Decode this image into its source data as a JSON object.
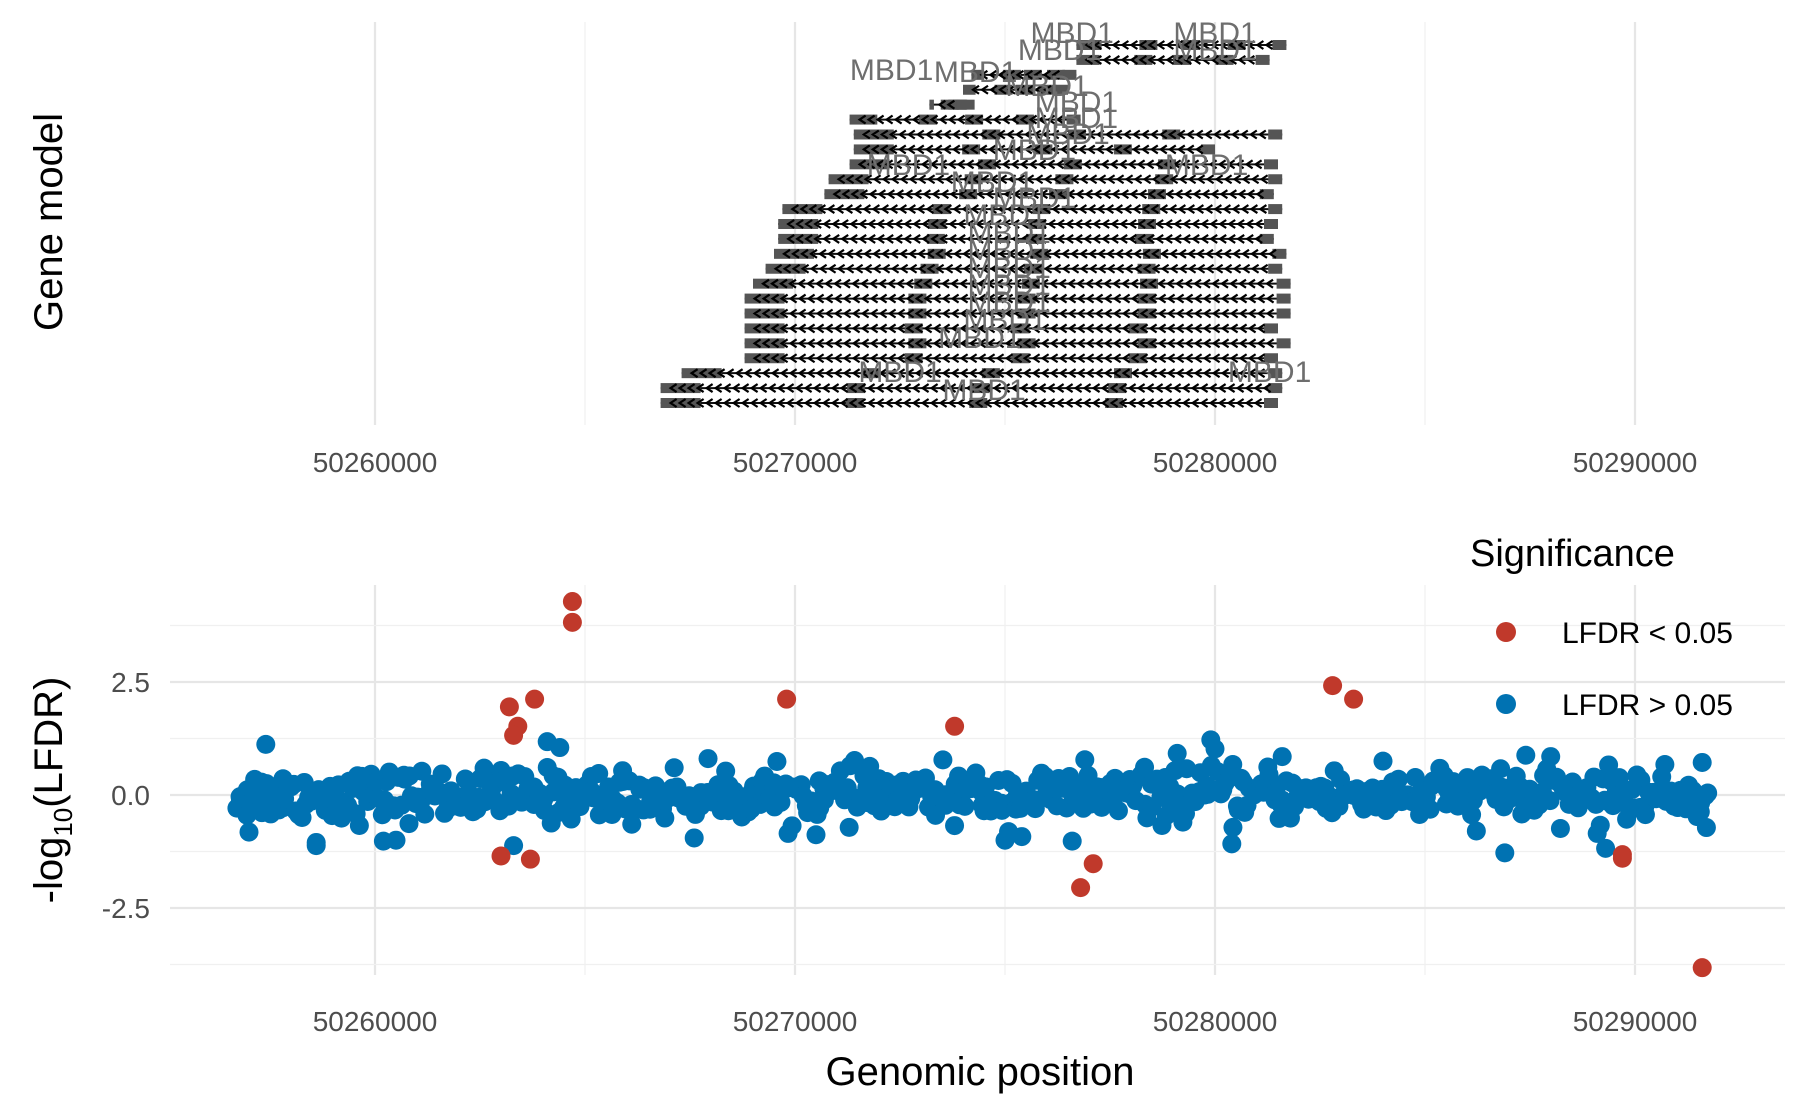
{
  "chart_data": [
    {
      "type": "gene_model",
      "ylabel": "Gene model",
      "xlim": [
        50255500,
        50293500
      ],
      "x_ticks": [
        50260000,
        50270000,
        50280000,
        50290000
      ],
      "x_tick_labels": [
        "50260000",
        "50270000",
        "50280000",
        "50290000"
      ],
      "grid": true,
      "strand": "-",
      "gene_name": "MBD1",
      "transcripts": [
        {
          "start": 50276700,
          "end": 50281700,
          "label": "MBD1"
        },
        {
          "start": 50276700,
          "end": 50281300,
          "label": "MBD1"
        },
        {
          "start": 50274200,
          "end": 50276700,
          "label": "MBD1"
        },
        {
          "start": 50274000,
          "end": 50276500,
          "label": "MBD1"
        },
        {
          "start": 50273200,
          "end": 50274100,
          "label": "MBD1"
        },
        {
          "start": 50271300,
          "end": 50276800,
          "label": "MBD1"
        },
        {
          "start": 50271400,
          "end": 50281600,
          "label": "MBD1"
        },
        {
          "start": 50271400,
          "end": 50280000,
          "label": "MBD1"
        },
        {
          "start": 50271300,
          "end": 50281500,
          "label": "MBD1"
        },
        {
          "start": 50270800,
          "end": 50281600,
          "label": "MBD1"
        },
        {
          "start": 50270700,
          "end": 50281400,
          "label": "MBD1"
        },
        {
          "start": 50269700,
          "end": 50281600,
          "label": "MBD1"
        },
        {
          "start": 50269600,
          "end": 50281500,
          "label": "MBD1"
        },
        {
          "start": 50269600,
          "end": 50281400,
          "label": "MBD1"
        },
        {
          "start": 50269500,
          "end": 50281700,
          "label": "MBD1"
        },
        {
          "start": 50269300,
          "end": 50281600,
          "label": "MBD1"
        },
        {
          "start": 50269000,
          "end": 50281800,
          "label": "MBD1"
        },
        {
          "start": 50268800,
          "end": 50281800,
          "label": "MBD1"
        },
        {
          "start": 50268800,
          "end": 50281800,
          "label": "MBD1"
        },
        {
          "start": 50268800,
          "end": 50281500,
          "label": "MBD1"
        },
        {
          "start": 50268800,
          "end": 50281800,
          "label": "MBD1"
        },
        {
          "start": 50268800,
          "end": 50281500,
          "label": "MBD1"
        },
        {
          "start": 50267300,
          "end": 50281600,
          "label": "MBD1"
        },
        {
          "start": 50266800,
          "end": 50281600,
          "label": "MBD1"
        },
        {
          "start": 50266800,
          "end": 50281500,
          "label": "MBD1"
        }
      ]
    },
    {
      "type": "scatter",
      "xlabel": "Genomic position",
      "ylabel_main": "-log",
      "ylabel_sub": "10",
      "ylabel_rest": "(LFDR)",
      "xlim": [
        50255500,
        50293500
      ],
      "ylim": [
        -4.3,
        4.8
      ],
      "x_ticks": [
        50260000,
        50270000,
        50280000,
        50290000
      ],
      "x_tick_labels": [
        "50260000",
        "50270000",
        "50280000",
        "50290000"
      ],
      "y_ticks": [
        -2.5,
        0.0,
        2.5
      ],
      "y_tick_labels": [
        "-2.5",
        "0.0",
        "2.5"
      ],
      "grid": true,
      "legend": {
        "title": "Significance",
        "placement": "top-right",
        "entries": [
          {
            "label": "LFDR < 0.05",
            "color": "#c0392b"
          },
          {
            "label": "LFDR > 0.05",
            "color": "#0072b2"
          }
        ]
      },
      "background_noise": {
        "x_start": 50256700,
        "x_end": 50291700,
        "count": 620,
        "sd": 0.28
      },
      "series": [
        {
          "name": "LFDR < 0.05",
          "color": "#c0392b",
          "points": [
            [
              50264700,
              4.28
            ],
            [
              50264700,
              3.82
            ],
            [
              50263200,
              1.95
            ],
            [
              50263800,
              2.12
            ],
            [
              50263400,
              1.52
            ],
            [
              50263300,
              1.32
            ],
            [
              50269800,
              2.12
            ],
            [
              50273800,
              1.52
            ],
            [
              50282800,
              2.42
            ],
            [
              50283300,
              2.12
            ],
            [
              50263000,
              -1.35
            ],
            [
              50263700,
              -1.42
            ],
            [
              50276800,
              -2.05
            ],
            [
              50277100,
              -1.52
            ],
            [
              50289700,
              -1.32
            ],
            [
              50289700,
              -1.4
            ],
            [
              50291600,
              -3.82
            ]
          ]
        },
        {
          "name": "LFDR > 0.05",
          "color": "#0072b2",
          "points": [
            [
              50257400,
              1.12
            ],
            [
              50257000,
              -0.82
            ],
            [
              50258600,
              -1.12
            ],
            [
              50258600,
              -1.05
            ],
            [
              50260200,
              -1.02
            ],
            [
              50260500,
              -1.0
            ],
            [
              50263300,
              -1.12
            ],
            [
              50264100,
              1.18
            ],
            [
              50264400,
              1.05
            ],
            [
              50267600,
              -0.95
            ],
            [
              50270500,
              -0.88
            ],
            [
              50275000,
              -1.0
            ],
            [
              50275400,
              -0.92
            ],
            [
              50276900,
              0.78
            ],
            [
              50279100,
              0.92
            ],
            [
              50279900,
              1.22
            ],
            [
              50280000,
              1.02
            ],
            [
              50280400,
              -1.08
            ],
            [
              50281600,
              0.85
            ],
            [
              50284000,
              0.75
            ],
            [
              50286800,
              0.58
            ],
            [
              50287400,
              0.88
            ],
            [
              50286900,
              -1.28
            ],
            [
              50289100,
              -0.85
            ],
            [
              50289300,
              -1.18
            ],
            [
              50291600,
              0.72
            ],
            [
              50291700,
              -0.72
            ],
            [
              50276600,
              -1.02
            ]
          ]
        }
      ]
    }
  ]
}
